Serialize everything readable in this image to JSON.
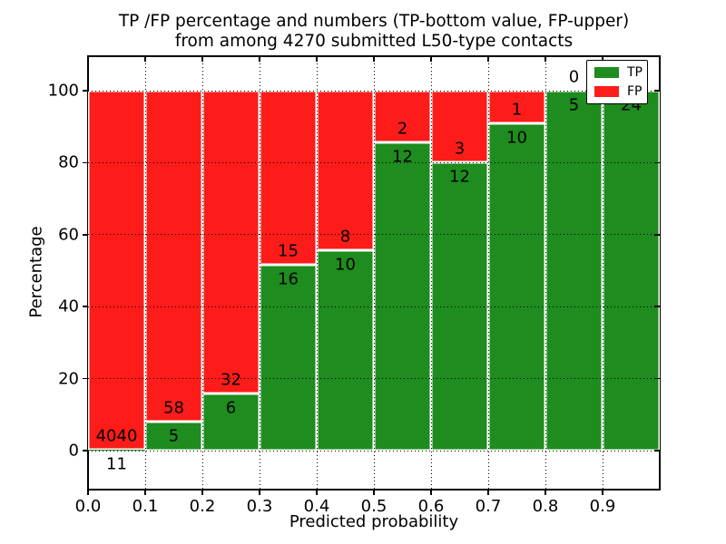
{
  "header": {
    "title_line1": "TP /FP percentage and numbers (TP-bottom value, FP-upper)",
    "title_line2": "from among 4270 submitted L50-type contacts"
  },
  "axes": {
    "xlabel": "Predicted probability",
    "ylabel": "Percentage",
    "xtick_values": [
      0.0,
      0.1,
      0.2,
      0.3,
      0.4,
      0.5,
      0.6,
      0.7,
      0.8,
      0.9
    ],
    "xtick_labels": [
      "0.0",
      "0.1",
      "0.2",
      "0.3",
      "0.4",
      "0.5",
      "0.6",
      "0.7",
      "0.8",
      "0.9"
    ],
    "ytick_values": [
      0,
      20,
      40,
      60,
      80,
      100
    ],
    "ytick_labels": [
      "0",
      "20",
      "40",
      "60",
      "80",
      "100"
    ]
  },
  "legend": {
    "position": "upper right",
    "items": [
      {
        "label": "TP",
        "color": "#1e8c1e"
      },
      {
        "label": "FP",
        "color": "#fd1c19"
      }
    ]
  },
  "chart_data": {
    "type": "bar",
    "stacked": true,
    "normalized_to_percent": true,
    "title": "TP /FP percentage and numbers (TP-bottom value, FP-upper) from among 4270 submitted L50-type contacts",
    "xlabel": "Predicted probability",
    "ylabel": "Percentage",
    "xlim": [
      0.0,
      1.0
    ],
    "ylim": [
      -11,
      110
    ],
    "grid": true,
    "bin_width": 0.1,
    "categories": [
      "0.0-0.1",
      "0.1-0.2",
      "0.2-0.3",
      "0.3-0.4",
      "0.4-0.5",
      "0.5-0.6",
      "0.6-0.7",
      "0.7-0.8",
      "0.8-0.9",
      "0.9-1.0"
    ],
    "series": [
      {
        "name": "TP",
        "color": "#1e8c1e",
        "values": [
          11,
          5,
          6,
          16,
          10,
          12,
          12,
          10,
          5,
          24
        ]
      },
      {
        "name": "FP",
        "color": "#fd1c19",
        "values": [
          4040,
          58,
          32,
          15,
          8,
          2,
          3,
          1,
          0,
          0
        ]
      }
    ],
    "tp_percentages": [
      0.27,
      7.94,
      15.79,
      51.61,
      55.56,
      85.71,
      80.0,
      90.91,
      100.0,
      100.0
    ]
  }
}
